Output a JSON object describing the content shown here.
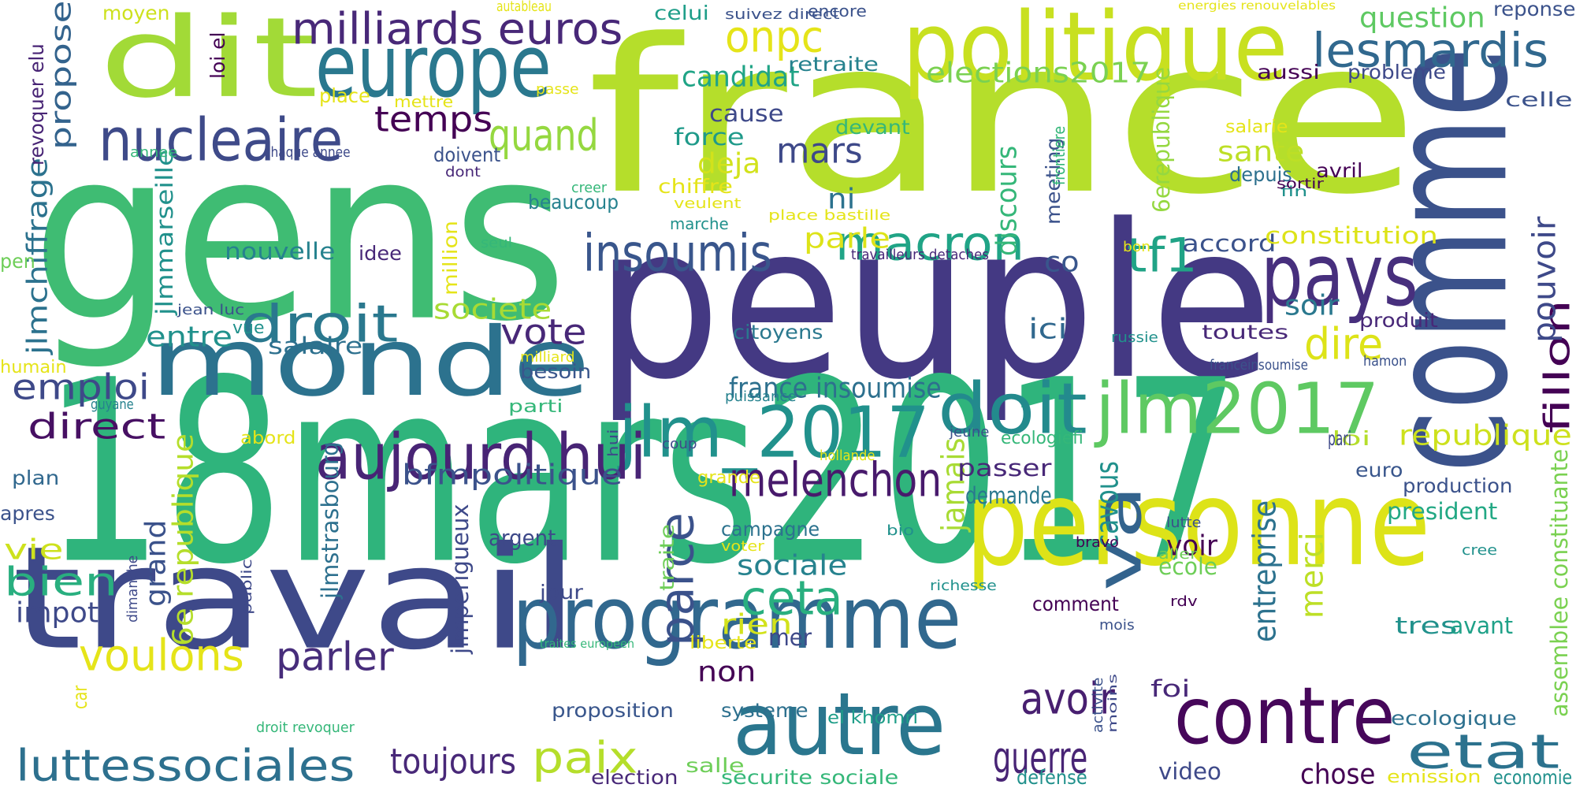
{
  "palette": {
    "dark_purple": "#482878",
    "indigo": "#443983",
    "blue": "#3e4989",
    "slate_blue": "#31688e",
    "teal_blue": "#26828e",
    "teal": "#1f9e89",
    "green": "#35b779",
    "light_green": "#6ece58",
    "lime": "#b5de2b",
    "yellow": "#e2e418",
    "deep_purple": "#440154"
  },
  "words": [
    {
      "text": "france",
      "color": "#b5de2b"
    },
    {
      "text": "gens",
      "color": "#3fbc73"
    },
    {
      "text": "peuple",
      "color": "#443983"
    },
    {
      "text": "18mars2017",
      "color": "#2fb47c"
    },
    {
      "text": "comme",
      "color": "#3b528b"
    },
    {
      "text": "personne",
      "color": "#dde318"
    },
    {
      "text": "travail",
      "color": "#3e4989"
    },
    {
      "text": "monde",
      "color": "#2c728e"
    },
    {
      "text": "dit",
      "color": "#a2da37"
    },
    {
      "text": "politique",
      "color": "#c8e020"
    },
    {
      "text": "europe",
      "color": "#2a788e"
    },
    {
      "text": "programme",
      "color": "#31688e"
    },
    {
      "text": "pays",
      "color": "#472f7d"
    },
    {
      "text": "autre",
      "color": "#2a768e"
    },
    {
      "text": "contre",
      "color": "#46075a"
    },
    {
      "text": "doit",
      "color": "#238a8d"
    },
    {
      "text": "jlm2017",
      "color": "#5ec962"
    },
    {
      "text": "jlm_2017",
      "color": "#21918c"
    },
    {
      "text": "va",
      "color": "#33638d"
    },
    {
      "text": "nucleaire",
      "color": "#3e4a89"
    },
    {
      "text": "aujourd hui",
      "color": "#482475"
    },
    {
      "text": "insoumis",
      "color": "#39568c"
    },
    {
      "text": "lesmardis",
      "color": "#31688e"
    },
    {
      "text": "milliards euros",
      "color": "#482878"
    },
    {
      "text": "luttessociales",
      "color": "#2d708e"
    },
    {
      "text": "melenchon",
      "color": "#481a6c"
    },
    {
      "text": "droit",
      "color": "#2a788e"
    },
    {
      "text": "onpc",
      "color": "#e5e419"
    },
    {
      "text": "macron",
      "color": "#20a486"
    },
    {
      "text": "voulons",
      "color": "#e5e419"
    },
    {
      "text": "etat",
      "color": "#2c728e"
    },
    {
      "text": "quand",
      "color": "#95d840"
    },
    {
      "text": "ceta",
      "color": "#29af7f"
    },
    {
      "text": "parce",
      "color": "#3b528b"
    },
    {
      "text": "fillon",
      "color": "#440154"
    },
    {
      "text": "tf1",
      "color": "#20a386"
    },
    {
      "text": "paix",
      "color": "#b5de2b"
    },
    {
      "text": "guerre",
      "color": "#482475"
    },
    {
      "text": "avoir",
      "color": "#481f70"
    },
    {
      "text": "dire",
      "color": "#dde318"
    },
    {
      "text": "temps",
      "color": "#440154"
    },
    {
      "text": "mars",
      "color": "#3e4989"
    },
    {
      "text": "emploi",
      "color": "#3e4989"
    },
    {
      "text": "direct",
      "color": "#471063"
    },
    {
      "text": "vote",
      "color": "#482878"
    },
    {
      "text": "bien",
      "color": "#29af7f"
    },
    {
      "text": "parler",
      "color": "#472d7b"
    },
    {
      "text": "toujours",
      "color": "#482878"
    },
    {
      "text": "entreprise",
      "color": "#2c728e"
    },
    {
      "text": "merci",
      "color": "#bddf26"
    },
    {
      "text": "jamais",
      "color": "#a8db34"
    },
    {
      "text": "cavous",
      "color": "#21918c"
    },
    {
      "text": "pouvoir",
      "color": "#3e4989"
    },
    {
      "text": "jlmchiffrage",
      "color": "#2c728e"
    },
    {
      "text": "propose",
      "color": "#33638d"
    },
    {
      "text": "bfmpolitique",
      "color": "#3b528b"
    },
    {
      "text": "france insoumise",
      "color": "#2d708e"
    },
    {
      "text": "sante",
      "color": "#bddf26"
    },
    {
      "text": "republique",
      "color": "#cde11d"
    },
    {
      "text": "question",
      "color": "#5ec962"
    },
    {
      "text": "elections2017",
      "color": "#7ad151"
    },
    {
      "text": "candidat",
      "color": "#20a486"
    },
    {
      "text": "deja",
      "color": "#d2e21b"
    },
    {
      "text": "societe",
      "color": "#a8db34"
    },
    {
      "text": "rien",
      "color": "#d2e21b"
    },
    {
      "text": "grand",
      "color": "#3b528b"
    },
    {
      "text": "6e republique",
      "color": "#b5de2b"
    },
    {
      "text": "sociale",
      "color": "#26828e"
    },
    {
      "text": "ni",
      "color": "#2c728e"
    },
    {
      "text": "co",
      "color": "#39568c"
    },
    {
      "text": "ici",
      "color": "#31688e"
    },
    {
      "text": "discours",
      "color": "#35b779"
    },
    {
      "text": "parle",
      "color": "#dde318"
    },
    {
      "text": "soir",
      "color": "#2a788e"
    },
    {
      "text": "accord",
      "color": "#3b528b"
    },
    {
      "text": "constitution",
      "color": "#dde318"
    },
    {
      "text": "6erepublique",
      "color": "#95d840"
    },
    {
      "text": "vie",
      "color": "#cde11d"
    },
    {
      "text": "impot",
      "color": "#3e4989"
    },
    {
      "text": "entre",
      "color": "#21918c"
    },
    {
      "text": "salaire",
      "color": "#2d708e"
    },
    {
      "text": "cause",
      "color": "#3e4989"
    },
    {
      "text": "force",
      "color": "#1f9a8a"
    },
    {
      "text": "nouvelle",
      "color": "#26828e"
    },
    {
      "text": "mer",
      "color": "#3e4989"
    },
    {
      "text": "non",
      "color": "#440154"
    },
    {
      "text": "passer",
      "color": "#482878"
    },
    {
      "text": "demande",
      "color": "#2a788e"
    },
    {
      "text": "voir",
      "color": "#440154"
    },
    {
      "text": "ecole",
      "color": "#6ece58"
    },
    {
      "text": "tres",
      "color": "#21918c"
    },
    {
      "text": "avant",
      "color": "#1fa188"
    },
    {
      "text": "president",
      "color": "#22a884"
    },
    {
      "text": "production",
      "color": "#3b528b"
    },
    {
      "text": "euro",
      "color": "#39568c"
    },
    {
      "text": "loi",
      "color": "#b5de2b"
    },
    {
      "text": "pari",
      "color": "#3e4989"
    },
    {
      "text": "depuis",
      "color": "#2d708e"
    },
    {
      "text": "toutes",
      "color": "#482878"
    },
    {
      "text": "produit",
      "color": "#482878"
    },
    {
      "text": "celle",
      "color": "#3b528b"
    },
    {
      "text": "reponse",
      "color": "#3b528b"
    },
    {
      "text": "probleme",
      "color": "#3e4989"
    },
    {
      "text": "aussi",
      "color": "#440154"
    },
    {
      "text": "retraite",
      "color": "#26828e"
    },
    {
      "text": "devant",
      "color": "#35b779"
    },
    {
      "text": "meeting",
      "color": "#3b528b"
    },
    {
      "text": "encore",
      "color": "#3b528b"
    },
    {
      "text": "celui",
      "color": "#1f9e89"
    },
    {
      "text": "moyen",
      "color": "#cde11d"
    },
    {
      "text": "jlmmarseille",
      "color": "#21918c"
    },
    {
      "text": "revoquer elu",
      "color": "#482475"
    },
    {
      "text": "loi el",
      "color": "#440154"
    },
    {
      "text": "place",
      "color": "#e5e419"
    },
    {
      "text": "mettre",
      "color": "#e5e419"
    },
    {
      "text": "annee",
      "color": "#35b779"
    },
    {
      "text": "chaque annee",
      "color": "#3e4989"
    },
    {
      "text": "doivent",
      "color": "#3b528b"
    },
    {
      "text": "dont",
      "color": "#482878"
    },
    {
      "text": "idee",
      "color": "#482878"
    },
    {
      "text": "million",
      "color": "#e5e419"
    },
    {
      "text": "seul",
      "color": "#35b779"
    },
    {
      "text": "pen",
      "color": "#6ece58"
    },
    {
      "text": "jean luc",
      "color": "#3b528b"
    },
    {
      "text": "humain",
      "color": "#e5e419"
    },
    {
      "text": "guyane",
      "color": "#26828e"
    },
    {
      "text": "abord",
      "color": "#e5e419"
    },
    {
      "text": "plan",
      "color": "#31688e"
    },
    {
      "text": "apres",
      "color": "#3b528b"
    },
    {
      "text": "parti",
      "color": "#35b779"
    },
    {
      "text": "besoin",
      "color": "#39568c"
    },
    {
      "text": "argent",
      "color": "#3e4989"
    },
    {
      "text": "jour",
      "color": "#3e4989"
    },
    {
      "text": "jlmstrasbourg",
      "color": "#2d708e"
    },
    {
      "text": "jlmperigueux",
      "color": "#3e4989"
    },
    {
      "text": "campagne",
      "color": "#2c728e"
    },
    {
      "text": "traite",
      "color": "#6ece58"
    },
    {
      "text": "citoyens",
      "color": "#2a788e"
    },
    {
      "text": "systeme",
      "color": "#2d708e"
    },
    {
      "text": "el khomri",
      "color": "#1f9e89"
    },
    {
      "text": "proposition",
      "color": "#39568c"
    },
    {
      "text": "foi",
      "color": "#482878"
    },
    {
      "text": "comment",
      "color": "#440154"
    },
    {
      "text": "video",
      "color": "#3e4989"
    },
    {
      "text": "chose",
      "color": "#440154"
    },
    {
      "text": "defense",
      "color": "#21918c"
    },
    {
      "text": "ecologique",
      "color": "#2d708e"
    },
    {
      "text": "assemblee constituante",
      "color": "#7ad151"
    },
    {
      "text": "economie",
      "color": "#21918c"
    },
    {
      "text": "emission",
      "color": "#e5e419"
    },
    {
      "text": "securite sociale",
      "color": "#35b779"
    },
    {
      "text": "salle",
      "color": "#6ece58"
    },
    {
      "text": "election",
      "color": "#482878"
    },
    {
      "text": "liberte",
      "color": "#e5e419"
    },
    {
      "text": "car",
      "color": "#e5e419"
    },
    {
      "text": "droit revoquer",
      "color": "#35b779"
    },
    {
      "text": "traites europeen",
      "color": "#35b779"
    },
    {
      "text": "vue",
      "color": "#21918c"
    },
    {
      "text": "beaucoup",
      "color": "#26828e"
    },
    {
      "text": "marche",
      "color": "#21918c"
    },
    {
      "text": "chiffre",
      "color": "#e5e419"
    },
    {
      "text": "veulent",
      "color": "#e5e419"
    },
    {
      "text": "creer",
      "color": "#35b779"
    },
    {
      "text": "place bastille",
      "color": "#e5e419"
    },
    {
      "text": "travailleurs detaches",
      "color": "#482878"
    },
    {
      "text": "frontiere",
      "color": "#35b779"
    },
    {
      "text": "fin",
      "color": "#21918c"
    },
    {
      "text": "sortir",
      "color": "#440154"
    },
    {
      "text": "avril",
      "color": "#440154"
    },
    {
      "text": "salarie",
      "color": "#e5e419"
    },
    {
      "text": "russie",
      "color": "#21918c"
    },
    {
      "text": "bon",
      "color": "#e5e419"
    },
    {
      "text": "hamon",
      "color": "#3b528b"
    },
    {
      "text": "franceinsoumise",
      "color": "#3b528b"
    },
    {
      "text": "jeune",
      "color": "#3b528b"
    },
    {
      "text": "ecologiefi",
      "color": "#35b779"
    },
    {
      "text": "hollande",
      "color": "#e5e419"
    },
    {
      "text": "grande",
      "color": "#e5e419"
    },
    {
      "text": "coup",
      "color": "#3e4989"
    },
    {
      "text": "hui",
      "color": "#3e4989"
    },
    {
      "text": "puissance",
      "color": "#26828e"
    },
    {
      "text": "milliard",
      "color": "#e5e419"
    },
    {
      "text": "bio",
      "color": "#21918c"
    },
    {
      "text": "voter",
      "color": "#e5e419"
    },
    {
      "text": "richesse",
      "color": "#21918c"
    },
    {
      "text": "lutte",
      "color": "#3b528b"
    },
    {
      "text": "aller",
      "color": "#6ece58"
    },
    {
      "text": "bravo",
      "color": "#440154"
    },
    {
      "text": "rdv",
      "color": "#440154"
    },
    {
      "text": "mois",
      "color": "#3b528b"
    },
    {
      "text": "moins",
      "color": "#3e4989"
    },
    {
      "text": "activite",
      "color": "#3b528b"
    },
    {
      "text": "cree",
      "color": "#21918c"
    },
    {
      "text": "public",
      "color": "#3e4989"
    },
    {
      "text": "dimanche",
      "color": "#3e4989"
    },
    {
      "text": "autableau",
      "color": "#e5e419"
    },
    {
      "text": "suivez direct",
      "color": "#3b528b"
    },
    {
      "text": "energies renouvelables",
      "color": "#e5e419"
    },
    {
      "text": "passe",
      "color": "#e5e419"
    }
  ]
}
